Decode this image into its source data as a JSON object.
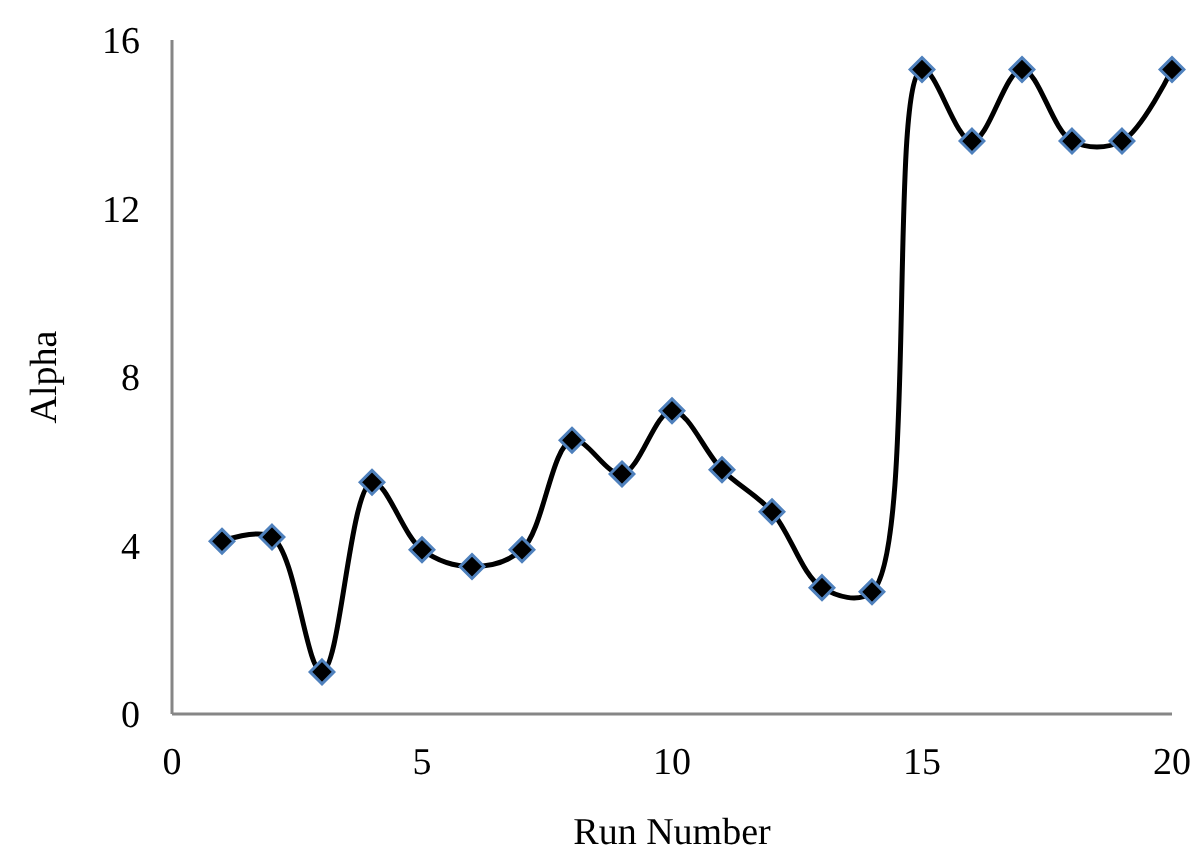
{
  "chart_data": {
    "type": "line",
    "xlabel": "Run Number",
    "ylabel": "Alpha",
    "x": [
      1,
      2,
      3,
      4,
      5,
      6,
      7,
      8,
      9,
      10,
      11,
      12,
      13,
      14,
      15,
      16,
      17,
      18,
      19,
      20
    ],
    "series": [
      {
        "color": "#000000",
        "values": [
          4.1,
          4.2,
          1.0,
          5.5,
          3.9,
          3.5,
          3.9,
          6.5,
          5.7,
          7.2,
          5.8,
          4.8,
          3.0,
          2.9,
          15.3,
          13.6,
          15.3,
          13.6,
          13.6,
          15.3
        ]
      }
    ],
    "xlim": [
      0,
      20
    ],
    "xticks": [
      0,
      5,
      10,
      15,
      20
    ],
    "ylim": [
      0,
      16
    ],
    "yticks": [
      0,
      4,
      8,
      12,
      16
    ],
    "grid": false,
    "marker": "diamond",
    "line_style": "solid"
  }
}
